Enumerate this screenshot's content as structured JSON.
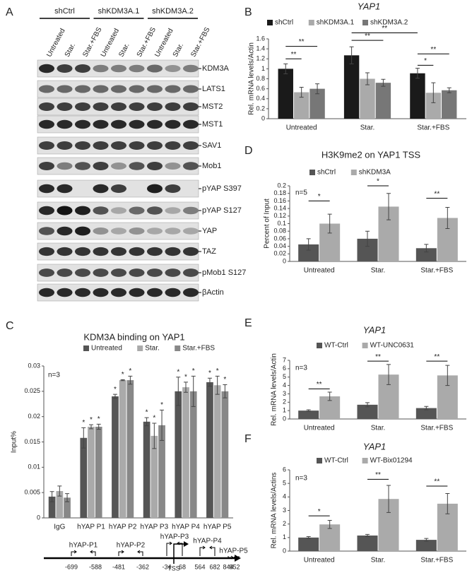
{
  "panel_labels": [
    "A",
    "B",
    "C",
    "D",
    "E",
    "F"
  ],
  "blot": {
    "groups": [
      "shCtrl",
      "shKDM3A.1",
      "shKDM3A.2"
    ],
    "lanes": [
      "Untreated",
      "Star.",
      "Star.+FBS",
      "Untreated",
      "Star.",
      "Star.+FBS",
      "Untreated",
      "Star.",
      "Star.+FBS"
    ],
    "rows": [
      "KDM3A",
      "LATS1",
      "MST2",
      "MST1",
      "SAV1",
      "Mob1",
      "pYAP S397",
      "pYAP S127",
      "YAP",
      "TAZ",
      "pMob1 S127",
      "βActin"
    ]
  },
  "chart_data": [
    {
      "type": "bar",
      "title": "YAP1",
      "y_label": "Rel. mRNA levels/Actin",
      "legend": "top",
      "grid": false,
      "categories": [
        "Untreated",
        "Star.",
        "Star.+FBS"
      ],
      "series": [
        {
          "name": "shCtrl",
          "color": "#1a1a1a",
          "values": [
            1.0,
            1.27,
            0.91
          ],
          "errors": [
            0.1,
            0.17,
            0.1
          ]
        },
        {
          "name": "shKDM3A.1",
          "color": "#aaaaaa",
          "values": [
            0.53,
            0.8,
            0.52
          ],
          "errors": [
            0.1,
            0.12,
            0.2
          ]
        },
        {
          "name": "shKDM3A.2",
          "color": "#777777",
          "values": [
            0.6,
            0.72,
            0.57
          ],
          "errors": [
            0.1,
            0.07,
            0.05
          ]
        }
      ],
      "ylim": [
        0,
        1.6
      ],
      "yticks": [
        0,
        0.2,
        0.4,
        0.6,
        0.8,
        1,
        1.2,
        1.4,
        1.6
      ],
      "annotations": [
        "**",
        "**",
        "**",
        "**",
        "**",
        "*"
      ]
    },
    {
      "type": "bar",
      "title": "H3K9me2 on YAP1 TSS",
      "y_label": "Percent of Input",
      "note": "n=5",
      "legend": "top",
      "grid": false,
      "categories": [
        "Untreated",
        "Star.",
        "Star.+FBS"
      ],
      "series": [
        {
          "name": "shCtrl",
          "color": "#555555",
          "values": [
            0.045,
            0.06,
            0.035
          ],
          "errors": [
            0.015,
            0.02,
            0.01
          ]
        },
        {
          "name": "shKDM3A",
          "color": "#aaaaaa",
          "values": [
            0.1,
            0.145,
            0.115
          ],
          "errors": [
            0.025,
            0.035,
            0.028
          ]
        }
      ],
      "ylim": [
        0,
        0.2
      ],
      "yticks": [
        0,
        0.02,
        0.04,
        0.06,
        0.08,
        0.1,
        0.12,
        0.14,
        0.16,
        0.18,
        0.2
      ],
      "annotations": [
        "*",
        "*",
        "**"
      ]
    },
    {
      "type": "bar",
      "title": "KDM3A binding on YAP1",
      "y_label": "Input%",
      "note": "n=3",
      "legend": "top",
      "grid": false,
      "categories": [
        "IgG",
        "hYAP P1",
        "hYAP P2",
        "hYAP P3",
        "hYAP P4",
        "hYAP P5"
      ],
      "series": [
        {
          "name": "Untreated",
          "color": "#555555",
          "values": [
            0.0042,
            0.0158,
            0.024,
            0.019,
            0.025,
            0.0268
          ],
          "errors": [
            0.001,
            0.002,
            0.0004,
            0.0008,
            0.0028,
            0.0008
          ]
        },
        {
          "name": "Star.",
          "color": "#aaaaaa",
          "values": [
            0.0053,
            0.018,
            0.0272,
            0.0162,
            0.0258,
            0.0262
          ],
          "errors": [
            0.001,
            0.0004,
            0.0001,
            0.0025,
            0.001,
            0.0018
          ]
        },
        {
          "name": "Star.+FBS",
          "color": "#888888",
          "values": [
            0.004,
            0.018,
            0.0272,
            0.0183,
            0.025,
            0.025
          ],
          "errors": [
            0.0008,
            0.0005,
            0.0008,
            0.003,
            0.003,
            0.0013
          ]
        }
      ],
      "ylim": [
        0,
        0.03
      ],
      "yticks": [
        0,
        0.005,
        0.01,
        0.015,
        0.02,
        0.025,
        0.03
      ],
      "annotations": [
        "*",
        "*",
        "*",
        "*",
        "*",
        "*",
        "*",
        "*",
        "*",
        "*",
        "*",
        "*",
        "*",
        "*",
        "*"
      ]
    },
    {
      "type": "bar",
      "title": "YAP1",
      "y_label": "Rel. mRNA levels/Actin",
      "note": "n=3",
      "legend": "top",
      "grid": false,
      "categories": [
        "Untreated",
        "Star.",
        "Star.+FBS"
      ],
      "series": [
        {
          "name": "WT-Ctrl",
          "color": "#555555",
          "values": [
            1.0,
            1.7,
            1.3
          ],
          "errors": [
            0.1,
            0.25,
            0.2
          ]
        },
        {
          "name": "WT-UNC0631",
          "color": "#aaaaaa",
          "values": [
            2.7,
            5.3,
            5.2
          ],
          "errors": [
            0.5,
            1.2,
            1.2
          ]
        }
      ],
      "ylim": [
        0,
        7
      ],
      "yticks": [
        0,
        1,
        2,
        3,
        4,
        5,
        6,
        7
      ],
      "annotations": [
        "**",
        "**",
        "**"
      ]
    },
    {
      "type": "bar",
      "title": "YAP1",
      "y_label": "Rel. mRNA levels/Actins",
      "note": "n=3",
      "legend": "top",
      "grid": false,
      "categories": [
        "Untreated",
        "Star.",
        "Star.+FBS"
      ],
      "series": [
        {
          "name": "WT-Ctrl",
          "color": "#555555",
          "values": [
            1.0,
            1.15,
            0.83
          ],
          "errors": [
            0.07,
            0.08,
            0.1
          ]
        },
        {
          "name": "WT-Bix01294",
          "color": "#aaaaaa",
          "values": [
            1.97,
            3.85,
            3.5
          ],
          "errors": [
            0.3,
            1.0,
            0.75
          ]
        }
      ],
      "ylim": [
        0,
        6
      ],
      "yticks": [
        0,
        1,
        2,
        3,
        4,
        5,
        6
      ],
      "annotations": [
        "*",
        "**",
        "**"
      ]
    }
  ],
  "promoter": {
    "primers": [
      "hYAP-P1",
      "hYAP-P2",
      "hYAP-P3",
      "hYAP-P4",
      "hYAP-P5"
    ],
    "positions": [
      -699,
      -588,
      -481,
      -362,
      -34,
      68,
      564,
      682,
      844,
      952
    ],
    "tss": "TSS"
  }
}
